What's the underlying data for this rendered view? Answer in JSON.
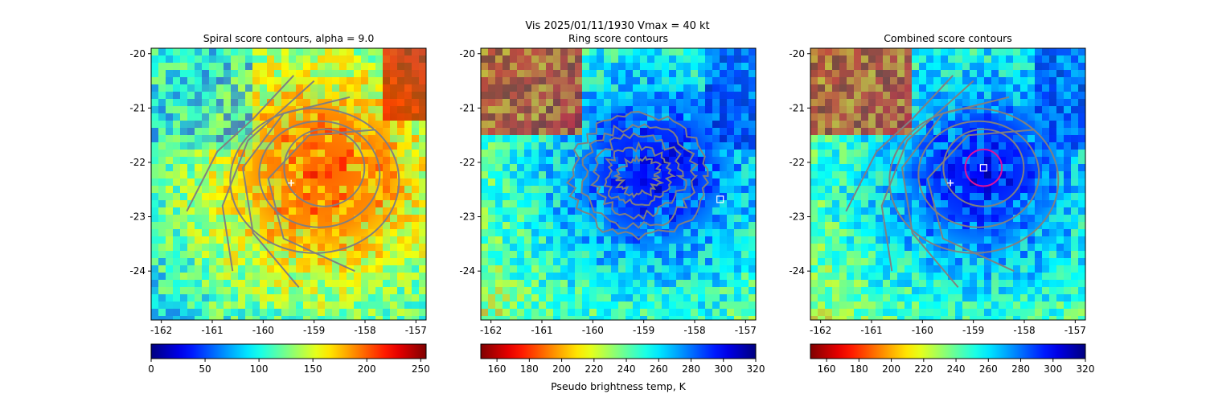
{
  "suptitle": "Vis  2025/01/11/1930    Vmax = 40 kt",
  "colors": {
    "contour": "#808080",
    "marker": "#ffffff",
    "circle": "#e0119b"
  },
  "chart_data": [
    {
      "type": "heatmap",
      "title": "Spiral score contours, alpha =  9.0",
      "xlim": [
        -162.2,
        -156.8
      ],
      "ylim": [
        -24.9,
        -19.9
      ],
      "xticks": [
        "-162",
        "-161",
        "-160",
        "-159",
        "-158",
        "-157"
      ],
      "yticks": [
        "-20",
        "-21",
        "-22",
        "-23",
        "-24"
      ],
      "field": "visible-reflectance",
      "colormap": "jet",
      "colorbar": {
        "ticks": [
          "0",
          "50",
          "100",
          "150",
          "200",
          "250"
        ],
        "range": [
          0,
          255
        ],
        "reversed": false,
        "label": ""
      },
      "markers": [
        {
          "type": "plus",
          "lon": -159.45,
          "lat": -22.38
        }
      ],
      "contours": "spiral"
    },
    {
      "type": "heatmap",
      "title": "Ring score contours",
      "xlim": [
        -162.2,
        -156.8
      ],
      "ylim": [
        -24.9,
        -19.9
      ],
      "xticks": [
        "-162",
        "-161",
        "-160",
        "-159",
        "-158",
        "-157"
      ],
      "yticks": [
        "-20",
        "-21",
        "-22",
        "-23",
        "-24"
      ],
      "field": "pseudo-brightness-temperature",
      "colormap": "jet_r",
      "colorbar": {
        "ticks": [
          "160",
          "180",
          "200",
          "220",
          "240",
          "260",
          "280",
          "300",
          "320"
        ],
        "range": [
          150,
          320
        ],
        "reversed": true,
        "label": "Pseudo brightness temp, K"
      },
      "markers": [
        {
          "type": "square",
          "lon": -157.5,
          "lat": -22.68
        }
      ],
      "contours": "ring"
    },
    {
      "type": "heatmap",
      "title": "Combined score contours",
      "xlim": [
        -162.2,
        -156.8
      ],
      "ylim": [
        -24.9,
        -19.9
      ],
      "xticks": [
        "-162",
        "-161",
        "-160",
        "-159",
        "-158",
        "-157"
      ],
      "yticks": [
        "-20",
        "-21",
        "-22",
        "-23",
        "-24"
      ],
      "field": "pseudo-brightness-temperature",
      "colormap": "jet_r",
      "colorbar": {
        "ticks": [
          "160",
          "180",
          "200",
          "220",
          "240",
          "260",
          "280",
          "300",
          "320"
        ],
        "range": [
          150,
          320
        ],
        "reversed": true,
        "label": ""
      },
      "markers": [
        {
          "type": "plus",
          "lon": -159.45,
          "lat": -22.38
        },
        {
          "type": "square",
          "lon": -158.8,
          "lat": -22.1
        },
        {
          "type": "circle",
          "lon": -158.8,
          "lat": -22.1,
          "radius_deg": 0.36
        }
      ],
      "contours": "combined"
    }
  ]
}
